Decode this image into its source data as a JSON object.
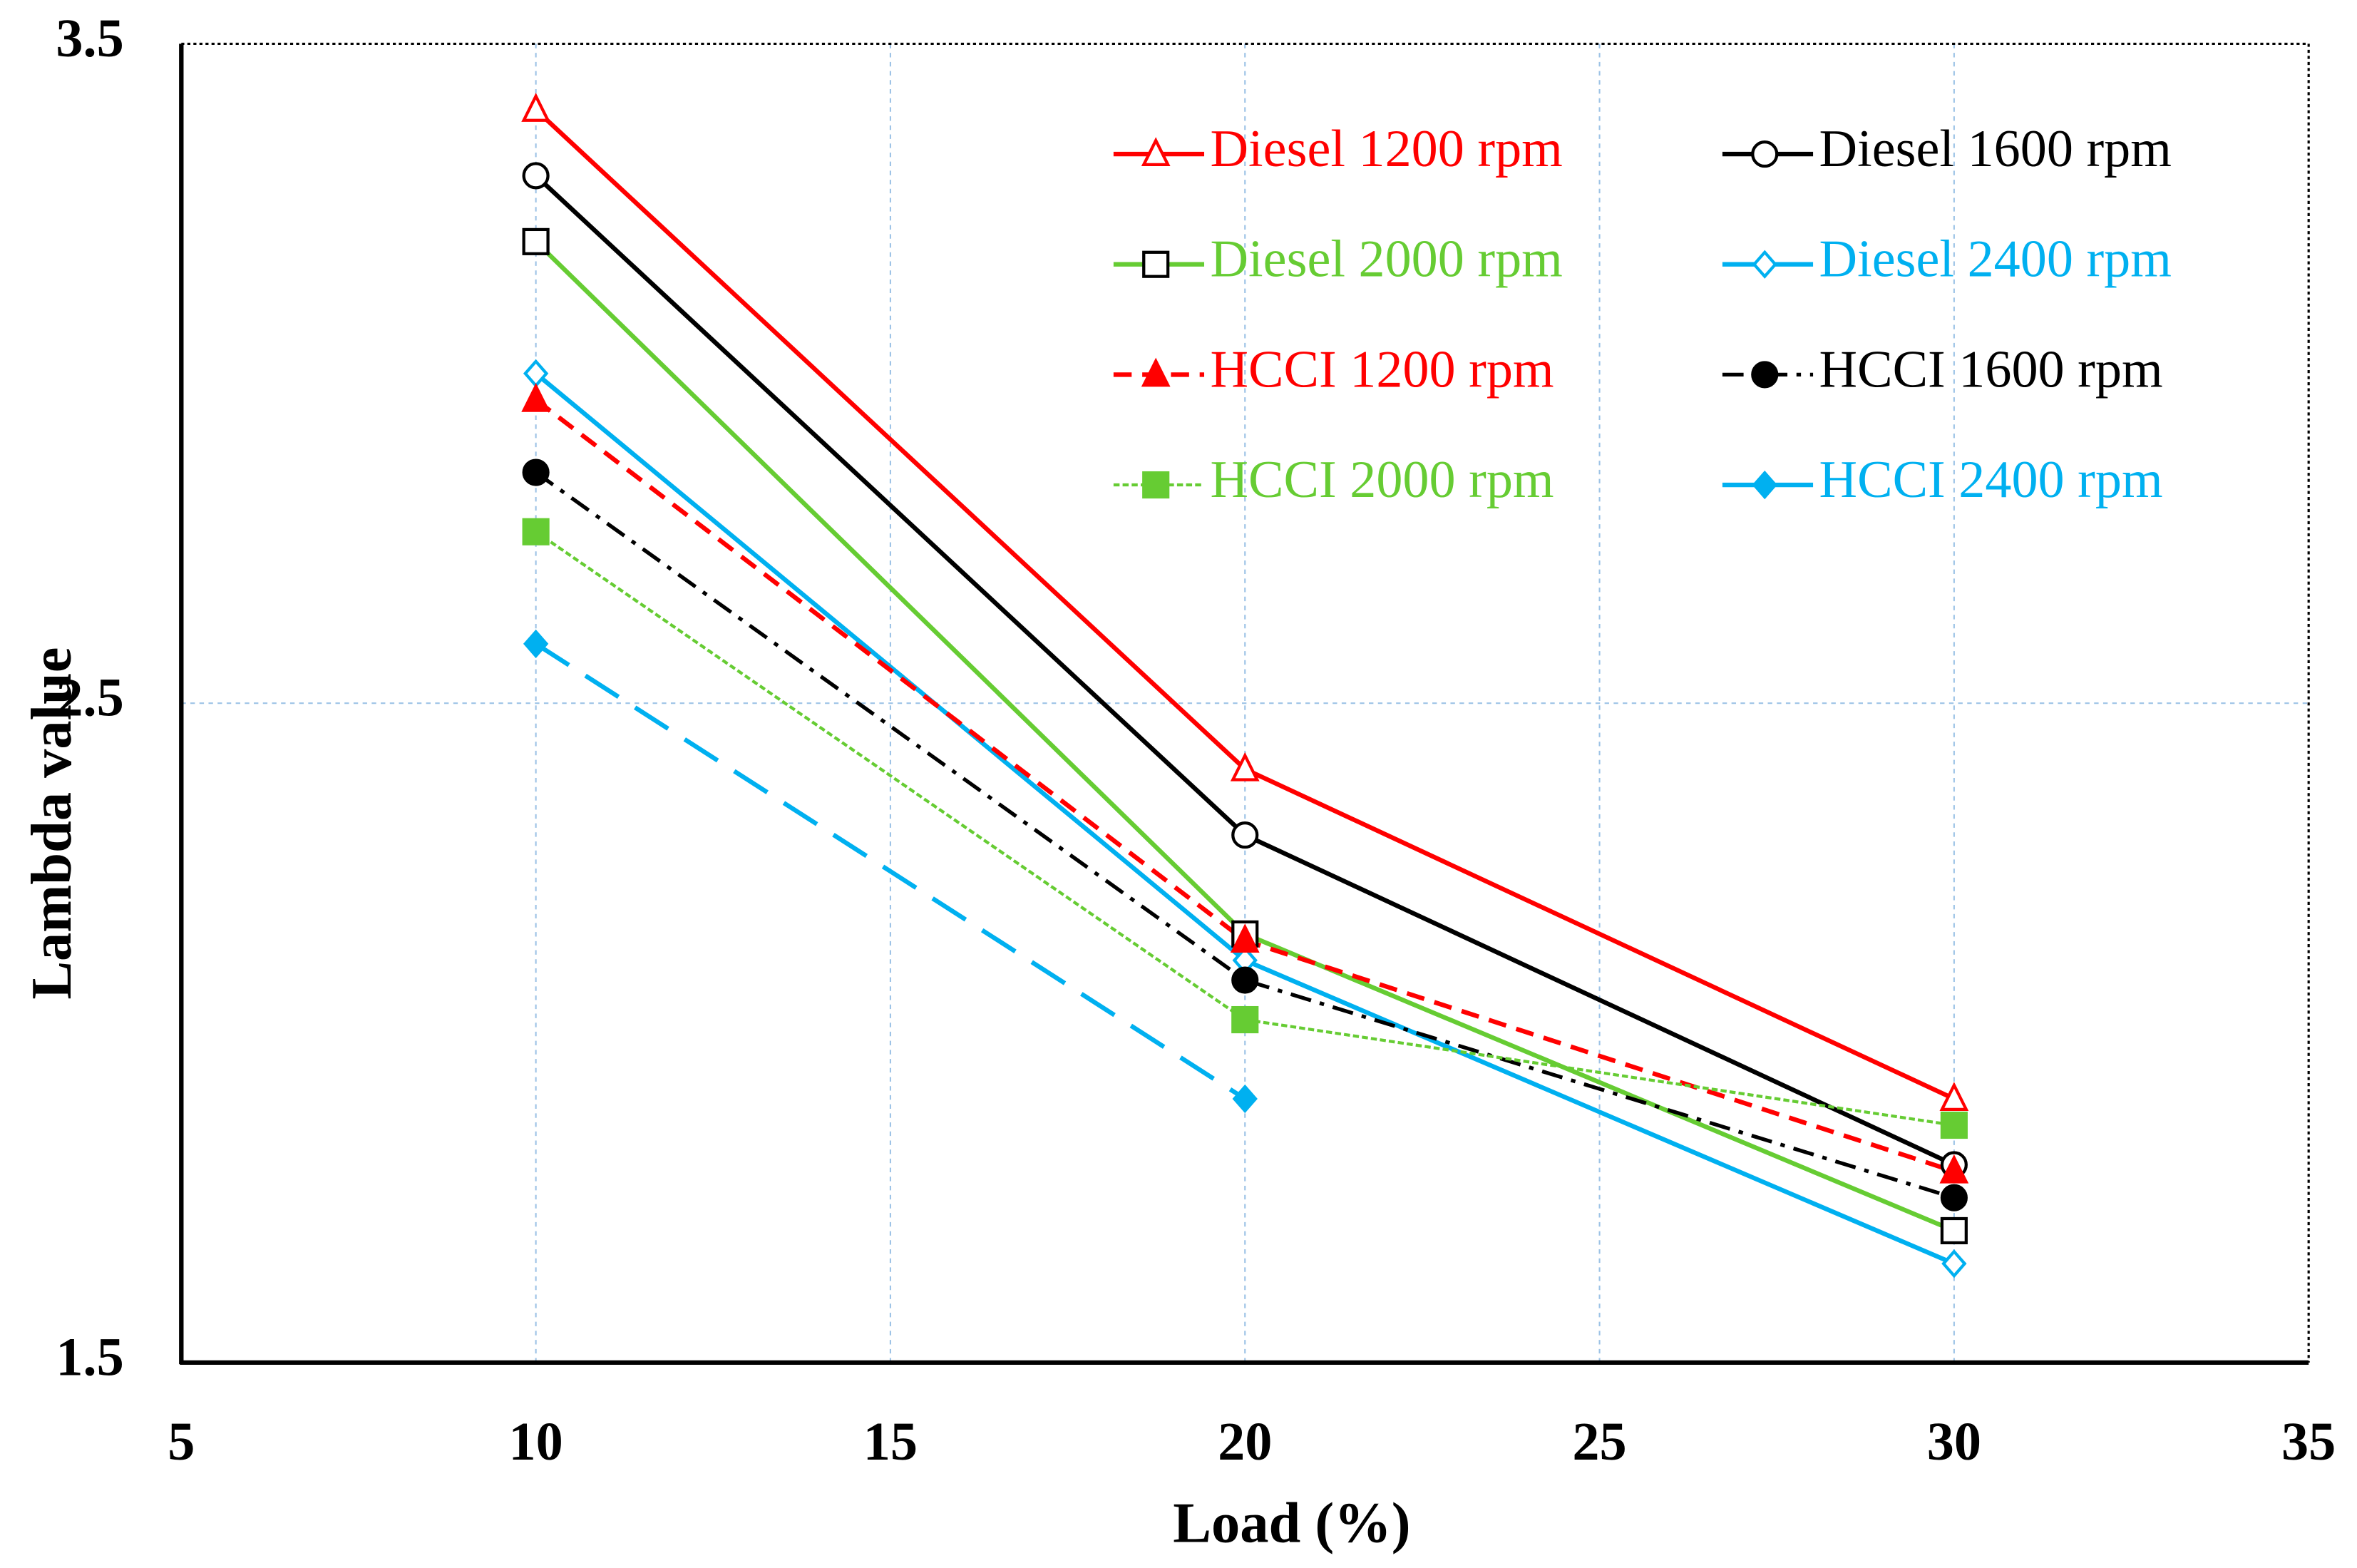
{
  "chart_data": {
    "type": "line",
    "x_label": "Load (%)",
    "y_label": "Lambda  value",
    "x": [
      10,
      20,
      30
    ],
    "xlim": [
      5,
      35
    ],
    "xticks": [
      5,
      10,
      15,
      20,
      25,
      30,
      35
    ],
    "ylim": [
      1.5,
      3.5
    ],
    "yticks": [
      1.5,
      2.5,
      3.5
    ],
    "grid": true,
    "legend": "upper right",
    "series": [
      {
        "name": "Diesel 1200 rpm",
        "color": "#ff0000",
        "marker_color": "#ff0000",
        "marker": "triangle",
        "filled": false,
        "dash": "solid",
        "values": [
          3.4,
          2.4,
          1.9
        ]
      },
      {
        "name": "Diesel 1600 rpm",
        "color": "#000000",
        "marker_color": "#000000",
        "marker": "circle",
        "filled": false,
        "dash": "solid",
        "values": [
          3.3,
          2.3,
          1.8
        ]
      },
      {
        "name": "Diesel 2000 rpm",
        "color": "#66cc33",
        "marker_color": "#000000",
        "marker": "square",
        "filled": false,
        "dash": "solid",
        "values": [
          3.2,
          2.15,
          1.7
        ]
      },
      {
        "name": "Diesel 2400 rpm",
        "color": "#00b0f0",
        "marker_color": "#00b0f0",
        "marker": "diamond",
        "filled": false,
        "dash": "solid",
        "values": [
          3.0,
          2.11,
          1.65
        ]
      },
      {
        "name": "HCCI 1200 rpm",
        "color": "#ff0000",
        "marker_color": "#ff0000",
        "marker": "triangle",
        "filled": true,
        "dash": "dashed",
        "values": [
          2.96,
          2.14,
          1.79
        ]
      },
      {
        "name": "HCCI 1600 rpm",
        "color": "#000000",
        "marker_color": "#000000",
        "marker": "circle",
        "filled": true,
        "dash": "dashdot",
        "values": [
          2.85,
          2.08,
          1.75
        ]
      },
      {
        "name": "HCCI 2000 rpm",
        "color": "#66cc33",
        "marker_color": "#66cc33",
        "marker": "square",
        "filled": true,
        "dash": "dotted",
        "values": [
          2.76,
          2.02,
          1.86
        ]
      },
      {
        "name": "HCCI 2400 rpm",
        "color": "#00b0f0",
        "marker_color": "#00b0f0",
        "marker": "diamond",
        "filled": true,
        "dash": "longdash",
        "values": [
          2.59,
          1.9,
          null
        ]
      }
    ]
  }
}
